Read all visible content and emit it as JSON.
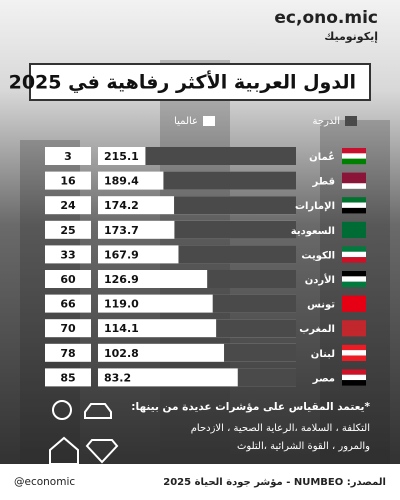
{
  "brand": {
    "logo": "ec,ono.mic",
    "logo_ar": "إيكونوميك"
  },
  "chart_data": {
    "type": "bar",
    "title": "الدول العربية الأكثر رفاهية في 2025",
    "categories": [
      "عُمان",
      "قطر",
      "الإمارات",
      "السعودية",
      "الكويت",
      "الأردن",
      "تونس",
      "المغرب",
      "لبنان",
      "مصر"
    ],
    "series": [
      {
        "name": "الدرجة",
        "color": "#4a4a4a",
        "values": [
          215.1,
          189.4,
          174.2,
          173.7,
          167.9,
          126.9,
          119.0,
          114.1,
          102.8,
          83.2
        ],
        "value_labels": [
          "215.1",
          "189.4",
          "174.2",
          "173.7",
          "167.9",
          "126.9",
          "119.0",
          "114.1",
          "102.8",
          "83.2"
        ]
      }
    ],
    "rank_name": "عالميا",
    "ranks": [
      3,
      16,
      24,
      25,
      33,
      60,
      66,
      70,
      78,
      85
    ]
  },
  "notes": {
    "heading": "*يعتمد المقياس على مؤشرات عديدة من بينها:",
    "lines": [
      "التكلفة ، السلامة ،الرعاية الصحية ، الازدحام",
      "والمرور ، القوة الشرائية ،التلوث"
    ]
  },
  "footer": {
    "handle": "@economic",
    "source": "المصدر: NUMBEO - مؤشر جودة الحياة 2025"
  }
}
